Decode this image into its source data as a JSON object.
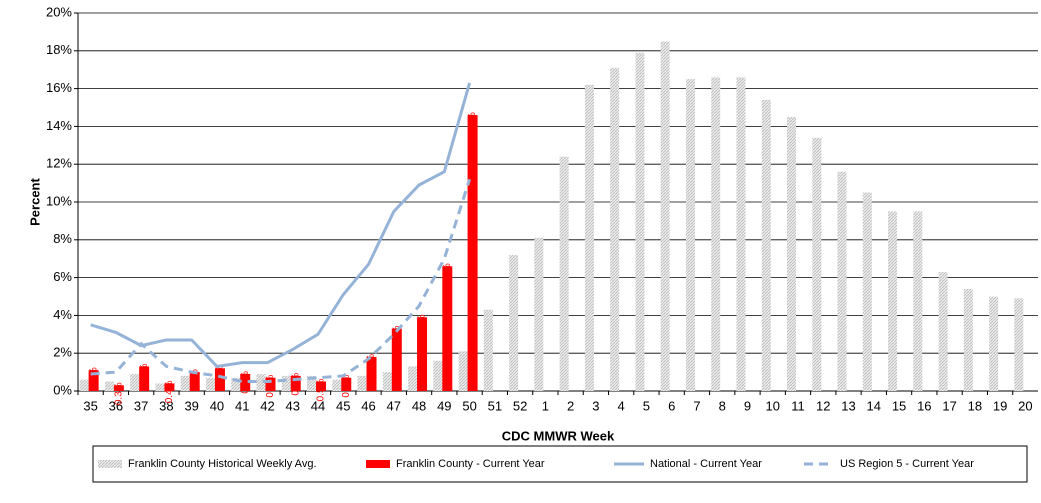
{
  "chart_data": {
    "type": "bar-line",
    "xlabel": "CDC MMWR Week",
    "ylabel": "Percent",
    "categories": [
      "35",
      "36",
      "37",
      "38",
      "39",
      "40",
      "41",
      "42",
      "43",
      "44",
      "45",
      "46",
      "47",
      "48",
      "49",
      "50",
      "51",
      "52",
      "1",
      "2",
      "3",
      "4",
      "5",
      "6",
      "7",
      "8",
      "9",
      "10",
      "11",
      "12",
      "13",
      "14",
      "15",
      "16",
      "17",
      "18",
      "19",
      "20"
    ],
    "ylim": [
      0,
      20
    ],
    "yticks": [
      {
        "value": 0,
        "label": "0%"
      },
      {
        "value": 2,
        "label": "2%"
      },
      {
        "value": 4,
        "label": "4%"
      },
      {
        "value": 6,
        "label": "6%"
      },
      {
        "value": 8,
        "label": "8%"
      },
      {
        "value": 10,
        "label": "10%"
      },
      {
        "value": 12,
        "label": "12%"
      },
      {
        "value": 14,
        "label": "14%"
      },
      {
        "value": 16,
        "label": "16%"
      },
      {
        "value": 18,
        "label": "18%"
      },
      {
        "value": 20,
        "label": "20%"
      }
    ],
    "grid": true,
    "series": [
      {
        "name": "Franklin County Historical Weekly Avg.",
        "kind": "bar",
        "color": "#d9d9d9",
        "values": [
          0.6,
          0.5,
          0.9,
          0.4,
          0.8,
          0.7,
          0.7,
          0.9,
          0.8,
          0.8,
          0.6,
          0.8,
          1.0,
          1.3,
          1.6,
          2.1,
          4.3,
          7.2,
          8.1,
          12.4,
          16.2,
          17.1,
          17.9,
          18.5,
          16.5,
          16.6,
          16.6,
          15.4,
          14.5,
          13.4,
          11.6,
          10.5,
          9.5,
          9.5,
          6.3,
          5.4,
          5.0,
          4.9
        ]
      },
      {
        "name": "Franklin County - Current Year",
        "kind": "bar",
        "color": "#ff0000",
        "values": [
          1.1,
          0.3,
          1.3,
          0.4,
          1.0,
          1.2,
          0.9,
          0.7,
          0.8,
          0.5,
          0.7,
          1.8,
          3.3,
          3.9,
          6.6,
          14.6,
          null,
          null,
          null,
          null,
          null,
          null,
          null,
          null,
          null,
          null,
          null,
          null,
          null,
          null,
          null,
          null,
          null,
          null,
          null,
          null,
          null,
          null
        ],
        "value_labels": [
          "1.1%",
          "0.3%",
          "1.3%",
          "0.4%",
          "1.0%",
          "1.2%",
          "0.9%",
          "0.7%",
          "0.8%",
          "0.5%",
          "0.7%",
          "1.8%",
          "3.3%",
          "3.9%",
          "6.6%",
          "14.6%",
          null,
          null,
          null,
          null,
          null,
          null,
          null,
          null,
          null,
          null,
          null,
          null,
          null,
          null,
          null,
          null,
          null,
          null,
          null,
          null,
          null,
          null
        ]
      },
      {
        "name": "National - Current Year",
        "kind": "line",
        "color": "#95b3d7",
        "values": [
          3.5,
          3.1,
          2.4,
          2.7,
          2.7,
          1.3,
          1.5,
          1.5,
          2.2,
          3.0,
          5.1,
          6.7,
          9.5,
          10.9,
          11.6,
          16.3,
          null,
          null,
          null,
          null,
          null,
          null,
          null,
          null,
          null,
          null,
          null,
          null,
          null,
          null,
          null,
          null,
          null,
          null,
          null,
          null,
          null,
          null
        ]
      },
      {
        "name": "US Region 5 - Current Year",
        "kind": "dashed",
        "color": "#95b3d7",
        "values": [
          0.9,
          1.0,
          2.5,
          1.3,
          1.0,
          0.8,
          0.5,
          0.5,
          0.6,
          0.7,
          0.8,
          1.7,
          3.0,
          4.5,
          7.0,
          11.2,
          null,
          null,
          null,
          null,
          null,
          null,
          null,
          null,
          null,
          null,
          null,
          null,
          null,
          null,
          null,
          null,
          null,
          null,
          null,
          null,
          null,
          null
        ]
      }
    ]
  }
}
